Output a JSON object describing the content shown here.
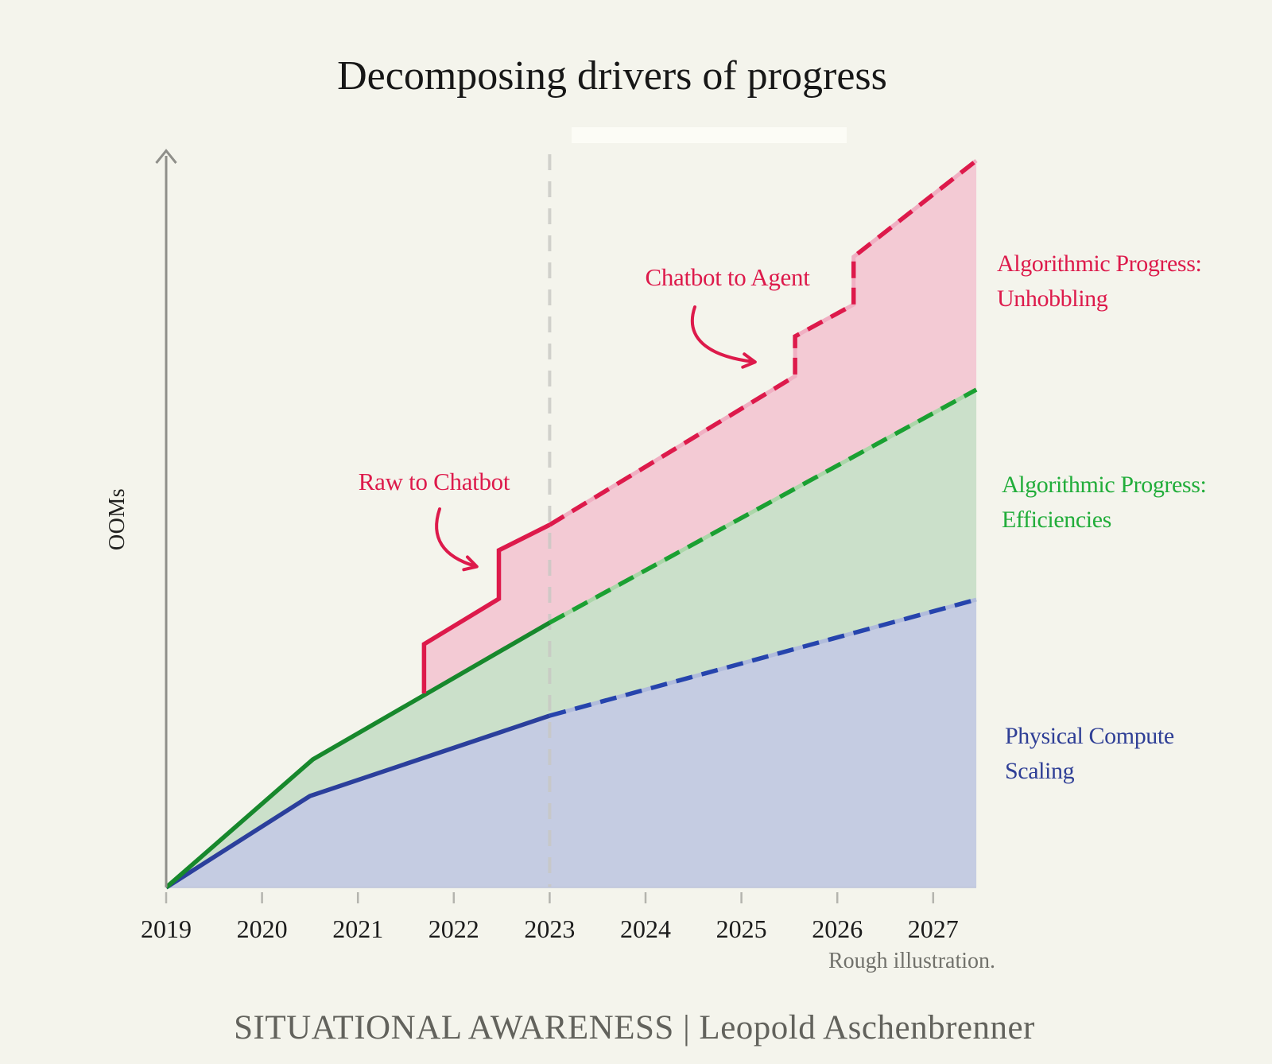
{
  "page": {
    "title": "Decomposing drivers of progress",
    "note": "Rough illustration.",
    "footer": "SITUATIONAL AWARENESS | Leopold Aschenbrenner",
    "background_color": "#f4f4ec"
  },
  "legend": {
    "unhobbling": {
      "line1": "Algorithmic Progress:",
      "line2": "Unhobbling",
      "color": "#dd1a4b"
    },
    "efficiencies": {
      "line1": "Algorithmic Progress:",
      "line2": "Efficiencies",
      "color": "#21ad3a"
    },
    "compute": {
      "line1": "Physical Compute",
      "line2": "Scaling",
      "color": "#2f3f96"
    }
  },
  "chart_data": {
    "type": "area",
    "title": "Decomposing drivers of progress",
    "xlabel": "",
    "ylabel": "OOMs",
    "y_axis_note": "axis unlabeled; values in approximate OOMs (rough illustration)",
    "x_range": [
      2019,
      2027.45
    ],
    "ylim": [
      0,
      9.6
    ],
    "grid": false,
    "legend_position": "right, outside plot",
    "x_tick_years": [
      2019,
      2020,
      2021,
      2022,
      2023,
      2024,
      2025,
      2026,
      2027
    ],
    "x_tick_labels": [
      "2019",
      "2020",
      "2021",
      "2022",
      "2023",
      "2024",
      "2025",
      "2026",
      "2027"
    ],
    "forecast_divider_year": 2023,
    "series": [
      {
        "id": "compute",
        "name": "Physical Compute Scaling",
        "style": "solid before 2023, dashed after",
        "line_color_solid": "#2b3f9c",
        "line_color_dashed": "#2644ad",
        "fill": "#c5cce2",
        "underlay": "#b0bbdb",
        "points_solid": [
          [
            2019,
            0
          ],
          [
            2020.5,
            1.15
          ],
          [
            2023,
            2.16
          ]
        ],
        "points_dashed": [
          [
            2023,
            2.16
          ],
          [
            2027.45,
            3.62
          ]
        ],
        "base_points": [
          [
            2019,
            0
          ],
          [
            2027.45,
            0
          ]
        ]
      },
      {
        "id": "efficiencies",
        "name": "Algorithmic Progress: Efficiencies",
        "style": "solid before 2023, dashed after",
        "line_color_solid": "#17882c",
        "line_color_dashed": "#1ba032",
        "fill": "#cbe0ca",
        "underlay": "#abd6a9",
        "points_solid": [
          [
            2019,
            0
          ],
          [
            2020.53,
            1.61
          ],
          [
            2023,
            3.33
          ]
        ],
        "points_dashed": [
          [
            2023,
            3.33
          ],
          [
            2027.45,
            6.26
          ]
        ],
        "base_points": [
          [
            2019,
            0
          ],
          [
            2020.5,
            1.15
          ],
          [
            2023,
            2.16
          ],
          [
            2027.45,
            3.62
          ]
        ]
      },
      {
        "id": "unhobbling",
        "name": "Algorithmic Progress: Unhobbling",
        "style": "solid step line before 2023, dashed step line after",
        "line_color_solid": "#dd1a4b",
        "line_color_dashed": "#dd1a4b",
        "fill": "#f3cad4",
        "underlay": "#f0afc2",
        "points_solid": [
          [
            2021.69,
            2.44
          ],
          [
            2021.69,
            3.06
          ],
          [
            2022.47,
            3.63
          ],
          [
            2022.47,
            4.24
          ],
          [
            2023,
            4.56
          ]
        ],
        "points_dashed": [
          [
            2023,
            4.56
          ],
          [
            2025.56,
            6.43
          ],
          [
            2025.56,
            6.93
          ],
          [
            2026.17,
            7.33
          ],
          [
            2026.17,
            7.93
          ],
          [
            2027.45,
            9.14
          ]
        ],
        "base_points": [
          [
            2021.69,
            2.44
          ],
          [
            2023,
            3.33
          ],
          [
            2027.45,
            6.26
          ]
        ]
      }
    ],
    "annotations": [
      {
        "label": "Raw to Chatbot",
        "points_at": "step up of unhobbling line at 2021.7",
        "color": "#dd1a4b"
      },
      {
        "label": "Chatbot to Agent",
        "points_at": "step up of unhobbling line at 2025.6",
        "color": "#dd1a4b"
      }
    ]
  }
}
